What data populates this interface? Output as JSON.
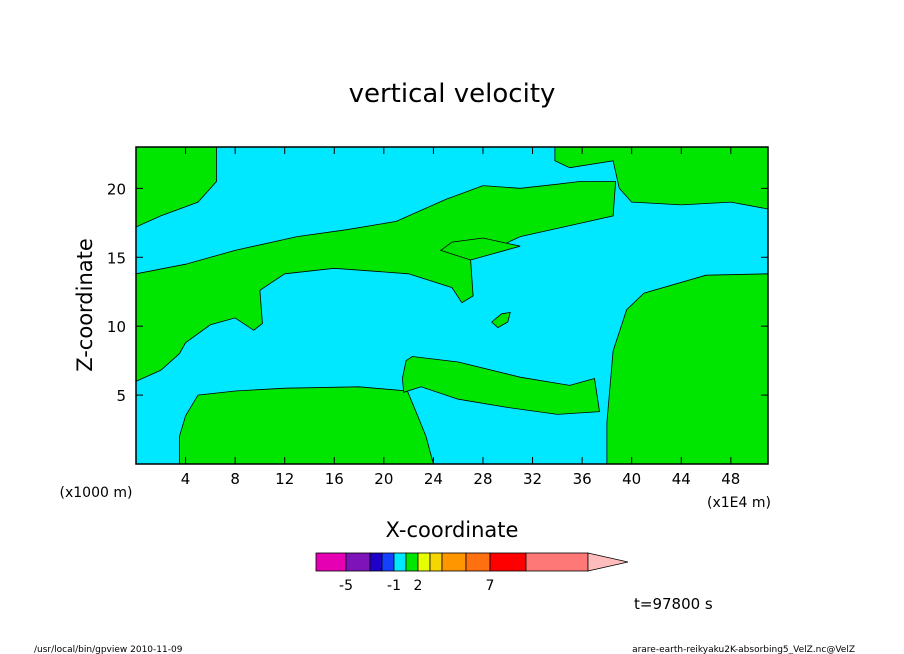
{
  "chart_data": {
    "type": "contour",
    "title": "vertical velocity",
    "xlabel": "X-coordinate",
    "ylabel": "Z-coordinate",
    "x_unit_left": "(x1000 m)",
    "x_unit_right": "(x1E4 m)",
    "xlim": [
      0,
      51
    ],
    "ylim": [
      0,
      23
    ],
    "x_ticks": [
      4,
      8,
      12,
      16,
      20,
      24,
      28,
      32,
      36,
      40,
      44,
      48
    ],
    "y_ticks": [
      5,
      10,
      15,
      20
    ],
    "background_level_color": "#00e8ff",
    "positive_level_color": "#00e600",
    "green_regions": [
      {
        "name": "upper-left",
        "points": [
          [
            0,
            23
          ],
          [
            6.5,
            23
          ],
          [
            6.5,
            20.5
          ],
          [
            5,
            19
          ],
          [
            2,
            18
          ],
          [
            0,
            17.2
          ]
        ]
      },
      {
        "name": "upper-right",
        "points": [
          [
            33.8,
            23
          ],
          [
            51,
            23
          ],
          [
            51,
            18.5
          ],
          [
            48,
            19
          ],
          [
            44,
            18.8
          ],
          [
            40,
            19
          ],
          [
            39,
            20
          ],
          [
            38.5,
            22
          ],
          [
            35,
            21.5
          ],
          [
            33.8,
            22
          ]
        ]
      },
      {
        "name": "diagonal-band",
        "points": [
          [
            0,
            13.8
          ],
          [
            4,
            14.5
          ],
          [
            8,
            15.5
          ],
          [
            13,
            16.5
          ],
          [
            17,
            17
          ],
          [
            21,
            17.6
          ],
          [
            25,
            19.2
          ],
          [
            28,
            20.2
          ],
          [
            31,
            20
          ],
          [
            34,
            20.3
          ],
          [
            35.8,
            20.5
          ],
          [
            38.7,
            20.5
          ],
          [
            38.5,
            18
          ],
          [
            35,
            17.3
          ],
          [
            31,
            16.5
          ],
          [
            27,
            14.8
          ],
          [
            27.2,
            12.2
          ],
          [
            26.3,
            11.7
          ],
          [
            25.5,
            12.8
          ],
          [
            22,
            13.8
          ],
          [
            16,
            14.2
          ],
          [
            12,
            13.8
          ],
          [
            10,
            12.6
          ],
          [
            10.2,
            10.2
          ],
          [
            9.5,
            9.7
          ],
          [
            8,
            10.6
          ],
          [
            6,
            10.1
          ],
          [
            4,
            8.8
          ],
          [
            3.5,
            8
          ],
          [
            2,
            6.8
          ],
          [
            0,
            6
          ]
        ]
      },
      {
        "name": "upper-blob",
        "points": [
          [
            24.6,
            15.5
          ],
          [
            27,
            14.8
          ],
          [
            31,
            15.8
          ],
          [
            28,
            16.4
          ],
          [
            25.5,
            16.1
          ]
        ]
      },
      {
        "name": "mid-blob",
        "points": [
          [
            28.7,
            10.3
          ],
          [
            29.5,
            10.9
          ],
          [
            30.2,
            11
          ],
          [
            30,
            10.3
          ],
          [
            29.2,
            9.9
          ]
        ]
      },
      {
        "name": "bottom-left",
        "points": [
          [
            3.5,
            0
          ],
          [
            24,
            0
          ],
          [
            23.4,
            2
          ],
          [
            22.5,
            4
          ],
          [
            21.9,
            5.3
          ],
          [
            18,
            5.6
          ],
          [
            12,
            5.5
          ],
          [
            8,
            5.3
          ],
          [
            5,
            5
          ],
          [
            4,
            3.5
          ],
          [
            3.5,
            2
          ]
        ]
      },
      {
        "name": "middle-band",
        "points": [
          [
            21.5,
            6.2
          ],
          [
            21.8,
            7.5
          ],
          [
            22.3,
            7.8
          ],
          [
            26,
            7.4
          ],
          [
            31,
            6.3
          ],
          [
            35,
            5.7
          ],
          [
            37,
            6.2
          ],
          [
            37.4,
            3.8
          ],
          [
            34,
            3.6
          ],
          [
            30,
            4.1
          ],
          [
            26,
            4.7
          ],
          [
            23,
            5.6
          ],
          [
            21.6,
            5.2
          ]
        ]
      },
      {
        "name": "right-block",
        "points": [
          [
            38,
            0
          ],
          [
            51,
            0
          ],
          [
            51,
            13.8
          ],
          [
            46,
            13.7
          ],
          [
            41,
            12.4
          ],
          [
            39.6,
            11.2
          ],
          [
            38.5,
            8.2
          ],
          [
            38,
            3
          ]
        ]
      }
    ]
  },
  "colorbar": {
    "colors": [
      "#e600b4",
      "#7e13b9",
      "#1e00c8",
      "#1640ff",
      "#00e8ff",
      "#00e600",
      "#e5ff00",
      "#f5d600",
      "#ff9600",
      "#ff7010",
      "#ff0000",
      "#ff7878",
      "#ffbcbc"
    ],
    "tick_labels": [
      "-5",
      "-1",
      "2",
      "7"
    ]
  },
  "time_label": "t=97800 s",
  "footer": {
    "left": "/usr/local/bin/gpview  2010-11-09",
    "right": "arare-earth-reikyaku2K-absorbing5_VelZ.nc@VelZ"
  }
}
